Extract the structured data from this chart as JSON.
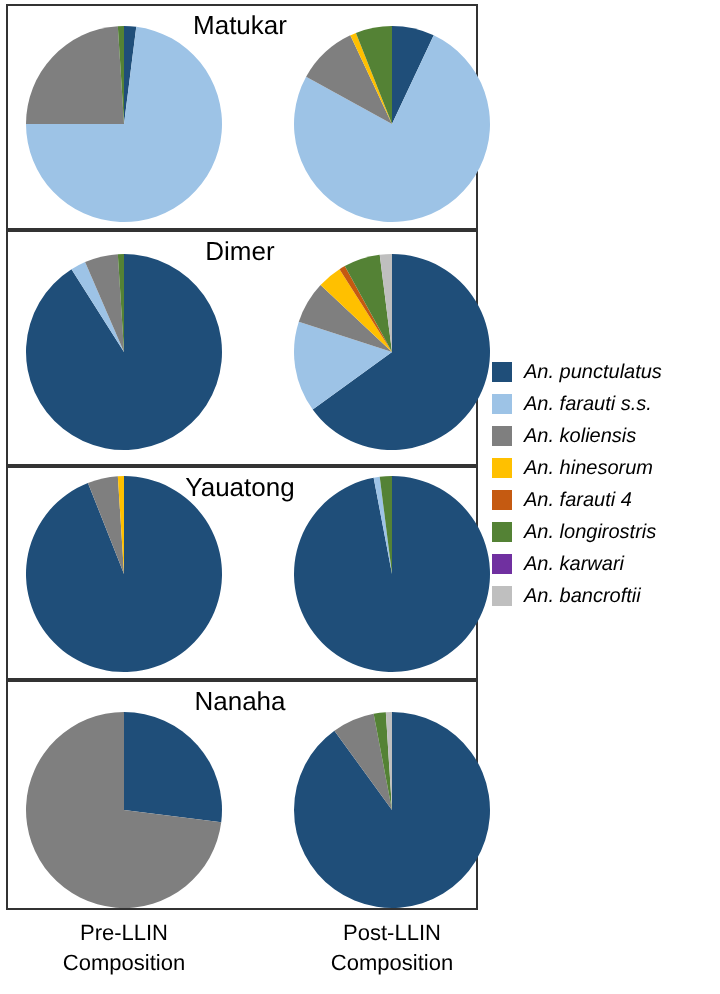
{
  "chart_data": [
    {
      "type": "pie",
      "title": "Matukar",
      "categories": [
        null,
        null,
        null,
        null,
        null,
        null,
        null,
        null
      ],
      "values": [
        2,
        73,
        24,
        0,
        0,
        1,
        0,
        0
      ],
      "colors": [
        "#1f4e79",
        "#9dc3e6",
        "#7f7f7f",
        "#ffc000",
        "#c55a11",
        "#548235",
        "#7030a0",
        "#bfbfbf"
      ]
    },
    {
      "type": "pie",
      "categories": [
        null,
        null,
        null,
        null,
        null,
        null,
        null,
        null
      ],
      "values": [
        7,
        76,
        10,
        1,
        0,
        6,
        0,
        0
      ],
      "colors": [
        "#1f4e79",
        "#9dc3e6",
        "#7f7f7f",
        "#ffc000",
        "#c55a11",
        "#548235",
        "#7030a0",
        "#bfbfbf"
      ]
    },
    {
      "type": "pie",
      "title": "Dimer",
      "categories": [
        null,
        null,
        null,
        null,
        null,
        null,
        null,
        null
      ],
      "values": [
        91,
        2.5,
        5.5,
        0,
        0,
        1,
        0,
        0
      ],
      "colors": [
        "#1f4e79",
        "#9dc3e6",
        "#7f7f7f",
        "#ffc000",
        "#c55a11",
        "#548235",
        "#7030a0",
        "#bfbfbf"
      ]
    },
    {
      "type": "pie",
      "legend": "right",
      "categories": [
        "An. punctulatus",
        "An. farauti s.s.",
        "An. koliensis",
        "An. hinesorum",
        "An. farauti 4",
        "An. longirostris",
        "An. karwari",
        "An. bancroftii"
      ],
      "values": [
        65,
        15,
        7,
        4,
        1,
        6,
        0,
        2
      ],
      "colors": [
        "#1f4e79",
        "#9dc3e6",
        "#7f7f7f",
        "#ffc000",
        "#c55a11",
        "#548235",
        "#7030a0",
        "#bfbfbf"
      ]
    },
    {
      "type": "pie",
      "title": "Yauatong",
      "categories": [
        null,
        null,
        null,
        null,
        null,
        null,
        null,
        null
      ],
      "values": [
        94,
        0,
        5,
        1,
        0,
        0,
        0,
        0
      ],
      "colors": [
        "#1f4e79",
        "#9dc3e6",
        "#7f7f7f",
        "#ffc000",
        "#c55a11",
        "#548235",
        "#7030a0",
        "#bfbfbf"
      ]
    },
    {
      "type": "pie",
      "categories": [
        null,
        null,
        null,
        null,
        null,
        null,
        null,
        null
      ],
      "values": [
        97,
        1,
        0,
        0,
        0,
        2,
        0,
        0
      ],
      "colors": [
        "#1f4e79",
        "#9dc3e6",
        "#7f7f7f",
        "#ffc000",
        "#c55a11",
        "#548235",
        "#7030a0",
        "#bfbfbf"
      ]
    },
    {
      "type": "pie",
      "title": "Nanaha",
      "xlabel": "Pre-LLIN Composition",
      "categories": [
        null,
        null,
        null,
        null,
        null,
        null,
        null,
        null
      ],
      "values": [
        27,
        0,
        73,
        0,
        0,
        0,
        0,
        0
      ],
      "colors": [
        "#1f4e79",
        "#9dc3e6",
        "#7f7f7f",
        "#ffc000",
        "#c55a11",
        "#548235",
        "#7030a0",
        "#bfbfbf"
      ]
    },
    {
      "type": "pie",
      "xlabel": "Post-LLIN Composition",
      "categories": [
        null,
        null,
        null,
        null,
        null,
        null,
        null,
        null
      ],
      "values": [
        90,
        0,
        7,
        0,
        0,
        2,
        0,
        1
      ],
      "colors": [
        "#1f4e79",
        "#9dc3e6",
        "#7f7f7f",
        "#ffc000",
        "#c55a11",
        "#548235",
        "#7030a0",
        "#bfbfbf"
      ]
    }
  ]
}
